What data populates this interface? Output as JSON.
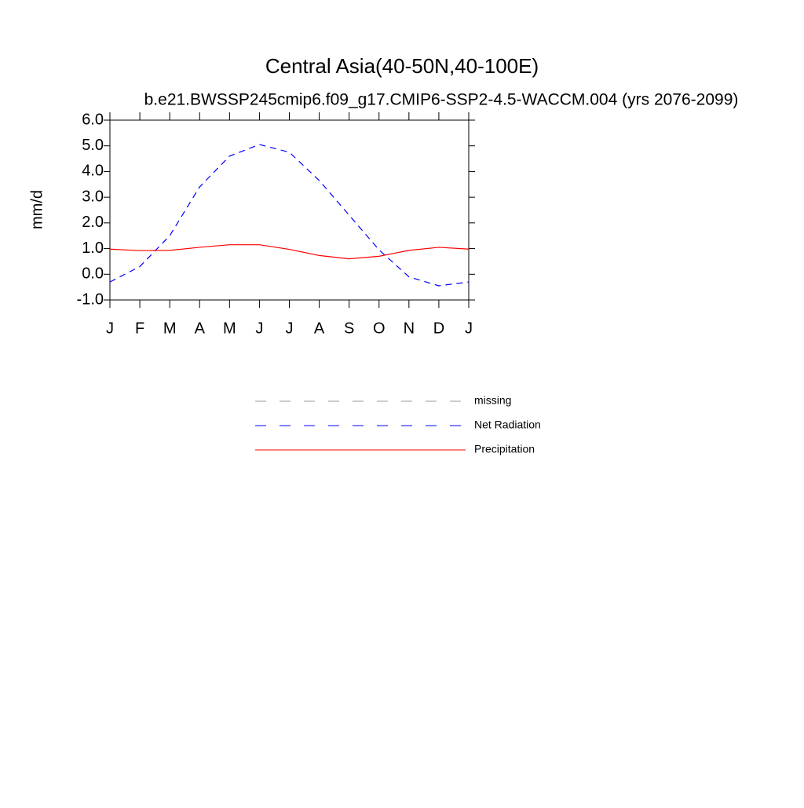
{
  "chart_data": {
    "type": "line",
    "title": "Central Asia(40-50N,40-100E)",
    "subtitle": "b.e21.BWSSP245cmip6.f09_g17.CMIP6-SSP2-4.5-WACCM.004 (yrs 2076-2099)",
    "y_label": "mm/d",
    "categories": [
      "J",
      "F",
      "M",
      "A",
      "M",
      "J",
      "J",
      "A",
      "S",
      "O",
      "N",
      "D",
      "J"
    ],
    "series": [
      {
        "name": "missing",
        "color": "#999999",
        "dashed": true,
        "values": [
          null,
          null,
          null,
          null,
          null,
          null,
          null,
          null,
          null,
          null,
          null,
          null,
          null
        ]
      },
      {
        "name": "Net Radiation",
        "color": "#0000ff",
        "dashed": true,
        "values": [
          -0.3,
          0.3,
          1.5,
          3.4,
          4.6,
          5.05,
          4.75,
          3.65,
          2.3,
          0.95,
          -0.1,
          -0.45,
          -0.3
        ]
      },
      {
        "name": "Precipitation",
        "color": "#ff0000",
        "dashed": false,
        "values": [
          0.98,
          0.92,
          0.93,
          1.05,
          1.15,
          1.15,
          0.97,
          0.73,
          0.6,
          0.7,
          0.93,
          1.05,
          0.98
        ]
      }
    ],
    "ylim": [
      -1,
      6
    ],
    "yticks": [
      {
        "value": -1,
        "label": "-1.0"
      },
      {
        "value": 0,
        "label": "0.0"
      },
      {
        "value": 1,
        "label": "1.0"
      },
      {
        "value": 2,
        "label": "2.0"
      },
      {
        "value": 3,
        "label": "3.0"
      },
      {
        "value": 4,
        "label": "4.0"
      },
      {
        "value": 5,
        "label": "5.0"
      },
      {
        "value": 6,
        "label": "6.0"
      }
    ],
    "grid": false
  }
}
